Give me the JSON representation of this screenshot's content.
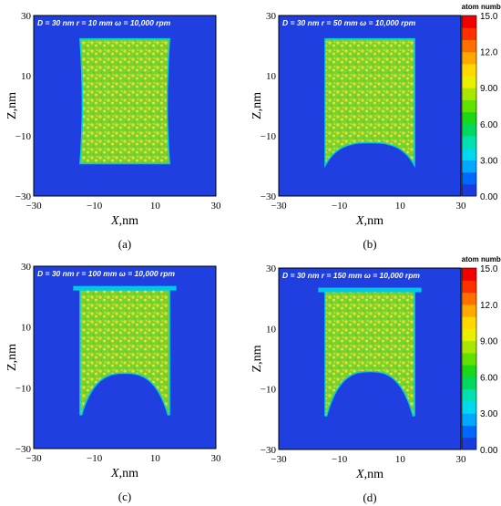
{
  "chart_data": [
    {
      "type": "heatmap",
      "panel_label": "(a)",
      "annotation": "D = 30 nm   r = 10 mm   ω = 10,000 rpm",
      "xlabel": "X,nm",
      "ylabel": "Z,nm",
      "xlim": [
        -30,
        30
      ],
      "ylim": [
        -30,
        30
      ],
      "xticks": [
        "−30",
        "−10",
        "10",
        "30"
      ],
      "yticks": [
        "30",
        "10",
        "−10",
        "−30"
      ],
      "top_rim": false,
      "cavity_depth_nm": 0,
      "colorbar": false
    },
    {
      "type": "heatmap",
      "panel_label": "(b)",
      "annotation": "D = 30 nm   r = 50 mm   ω = 10,000 rpm",
      "xlabel": "X,nm",
      "ylabel": "Z,nm",
      "xlim": [
        -30,
        30
      ],
      "ylim": [
        -30,
        30
      ],
      "xticks": [
        "−30",
        "−10",
        "10",
        "30"
      ],
      "yticks": [
        "30",
        "10",
        "−10",
        "−30"
      ],
      "top_rim": false,
      "cavity_depth_nm": 7,
      "colorbar": true
    },
    {
      "type": "heatmap",
      "panel_label": "(c)",
      "annotation": "D = 30 nm   r = 100 mm   ω = 10,000 rpm",
      "xlabel": "X,nm",
      "ylabel": "Z,nm",
      "xlim": [
        -30,
        30
      ],
      "ylim": [
        -30,
        30
      ],
      "xticks": [
        "−30",
        "−10",
        "10",
        "30"
      ],
      "yticks": [
        "30",
        "10",
        "−10",
        "−30"
      ],
      "top_rim": true,
      "cavity_depth_nm": 14,
      "colorbar": false
    },
    {
      "type": "heatmap",
      "panel_label": "(d)",
      "annotation": "D = 30 nm   r = 150 mm   ω = 10,000 rpm",
      "xlabel": "X,nm",
      "ylabel": "Z,nm",
      "xlim": [
        -30,
        30
      ],
      "ylim": [
        -30,
        30
      ],
      "xticks": [
        "−30",
        "−10",
        "10",
        "30"
      ],
      "yticks": [
        "30",
        "10",
        "−10",
        "−30"
      ],
      "top_rim": true,
      "cavity_depth_nm": 15,
      "colorbar": true
    }
  ],
  "colorbar": {
    "title": "atom number",
    "ticks": [
      "15.0",
      "12.0",
      "9.00",
      "6.00",
      "3.00",
      "0.00"
    ],
    "range": [
      0,
      15
    ],
    "colors": [
      "#1a3cdc",
      "#0068ff",
      "#00a8ff",
      "#00d8f0",
      "#00e0b0",
      "#00d860",
      "#18d818",
      "#60e000",
      "#a8e800",
      "#e8f000",
      "#ffd800",
      "#ffa800",
      "#ff7000",
      "#ff3000",
      "#f00000"
    ]
  }
}
